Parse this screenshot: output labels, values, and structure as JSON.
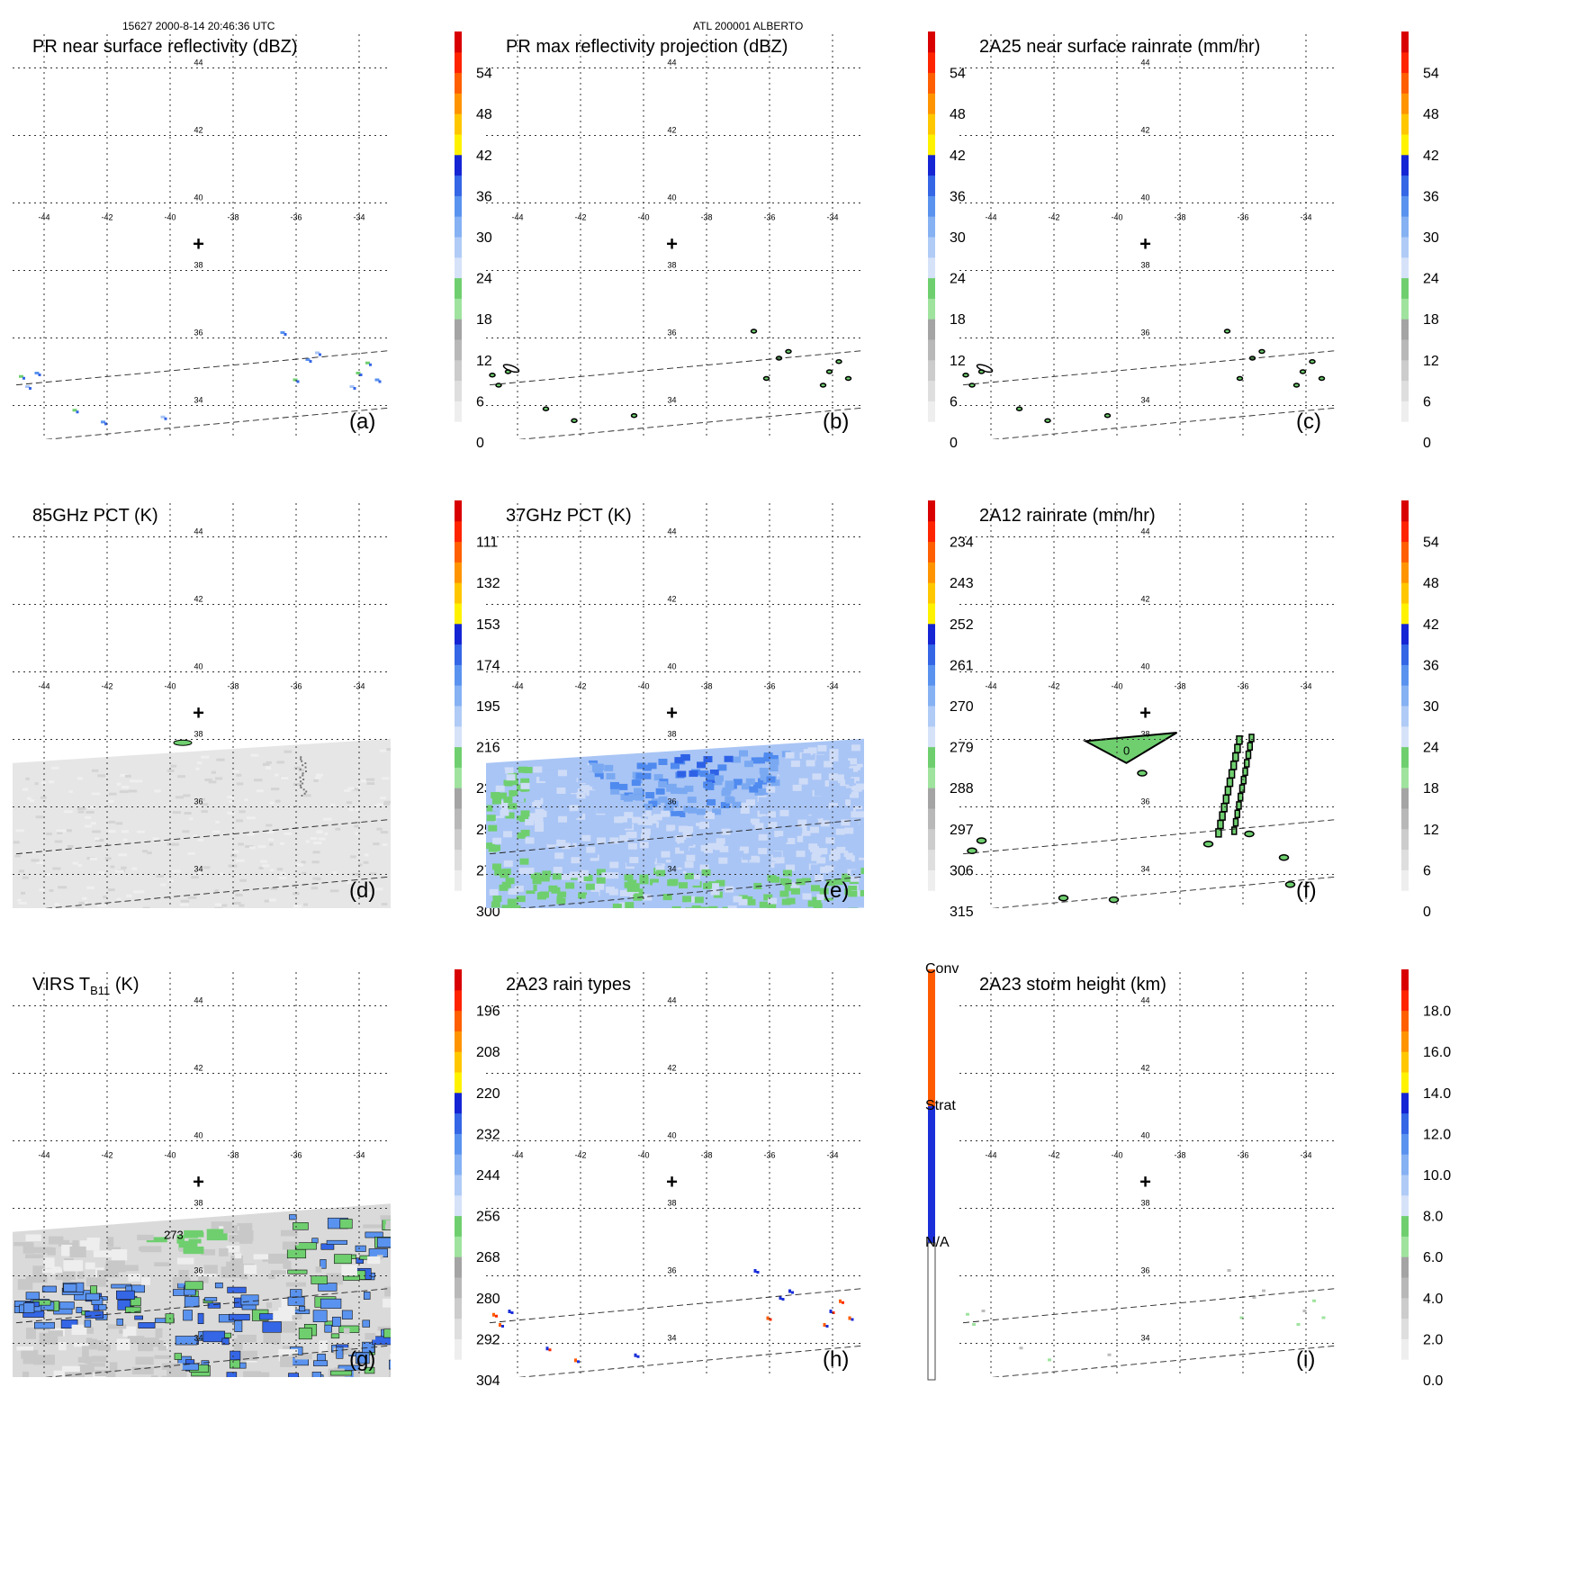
{
  "header": {
    "orbit_time": "15627 2000-8-14 20:46:36 UTC",
    "storm": "ATL 200001 ALBERTO"
  },
  "center_marker": {
    "lon": -39.1,
    "lat": 38.8,
    "symbol": "+"
  },
  "chart_data": [
    {
      "type": "heatmap",
      "panel_label": "(a)",
      "title": "PR near surface reflectivity (dBZ)",
      "colorbar": {
        "ticks": [
          "0",
          "6",
          "12",
          "18",
          "24",
          "30",
          "36",
          "42",
          "48",
          "54"
        ],
        "vmin": 0,
        "vmax": 60,
        "levels": 20
      },
      "xlim": [
        -45,
        -33
      ],
      "ylim": [
        33,
        45
      ],
      "x_ticks": [
        "-44",
        "-42",
        "-40",
        "-38",
        "-36",
        "-34"
      ],
      "y_ticks": [
        "34",
        "36",
        "38",
        "40",
        "42",
        "44"
      ],
      "swath": "pr",
      "field": "pr_sparse"
    },
    {
      "type": "heatmap",
      "panel_label": "(b)",
      "title": "PR max reflectivity projection (dBZ)",
      "colorbar": {
        "ticks": [
          "0",
          "6",
          "12",
          "18",
          "24",
          "30",
          "36",
          "42",
          "48",
          "54"
        ],
        "vmin": 0,
        "vmax": 60,
        "levels": 20
      },
      "xlim": [
        -45,
        -33
      ],
      "ylim": [
        33,
        45
      ],
      "x_ticks": [
        "-44",
        "-42",
        "-40",
        "-38",
        "-36",
        "-34"
      ],
      "y_ticks": [
        "34",
        "36",
        "38",
        "40",
        "42",
        "44"
      ],
      "swath": "pr",
      "field": "pr_contours"
    },
    {
      "type": "heatmap",
      "panel_label": "(c)",
      "title": "2A25 near surface rainrate (mm/hr)",
      "colorbar": {
        "ticks": [
          "0",
          "6",
          "12",
          "18",
          "24",
          "30",
          "36",
          "42",
          "48",
          "54"
        ],
        "vmin": 0,
        "vmax": 60,
        "levels": 20
      },
      "xlim": [
        -45,
        -33
      ],
      "ylim": [
        33,
        45
      ],
      "x_ticks": [
        "-44",
        "-42",
        "-40",
        "-38",
        "-36",
        "-34"
      ],
      "y_ticks": [
        "34",
        "36",
        "38",
        "40",
        "42",
        "44"
      ],
      "swath": "pr",
      "field": "pr_contours"
    },
    {
      "type": "heatmap",
      "panel_label": "(d)",
      "title": "85GHz PCT (K)",
      "colorbar": {
        "ticks": [
          "300",
          "279",
          "258",
          "237",
          "216",
          "195",
          "174",
          "153",
          "132",
          "111"
        ],
        "vmin": 300,
        "vmax": 90,
        "levels": 20
      },
      "xlim": [
        -45,
        -33
      ],
      "ylim": [
        33,
        45
      ],
      "x_ticks": [
        "-44",
        "-42",
        "-40",
        "-38",
        "-36",
        "-34"
      ],
      "y_ticks": [
        "34",
        "36",
        "38",
        "40",
        "42",
        "44"
      ],
      "swath": "tmi",
      "field": "pct85"
    },
    {
      "type": "heatmap",
      "panel_label": "(e)",
      "title": "37GHz PCT (K)",
      "colorbar": {
        "ticks": [
          "315",
          "306",
          "297",
          "288",
          "279",
          "270",
          "261",
          "252",
          "243",
          "234"
        ],
        "vmin": 315,
        "vmax": 225,
        "levels": 20
      },
      "xlim": [
        -45,
        -33
      ],
      "ylim": [
        33,
        45
      ],
      "x_ticks": [
        "-44",
        "-42",
        "-40",
        "-38",
        "-36",
        "-34"
      ],
      "y_ticks": [
        "34",
        "36",
        "38",
        "40",
        "42",
        "44"
      ],
      "swath": "tmi",
      "field": "pct37"
    },
    {
      "type": "heatmap",
      "panel_label": "(f)",
      "title": "2A12 rainrate (mm/hr)",
      "colorbar": {
        "ticks": [
          "0",
          "6",
          "12",
          "18",
          "24",
          "30",
          "36",
          "42",
          "48",
          "54"
        ],
        "vmin": 0,
        "vmax": 60,
        "levels": 20
      },
      "xlim": [
        -45,
        -33
      ],
      "ylim": [
        33,
        45
      ],
      "x_ticks": [
        "-44",
        "-42",
        "-40",
        "-38",
        "-36",
        "-34"
      ],
      "y_ticks": [
        "34",
        "36",
        "38",
        "40",
        "42",
        "44"
      ],
      "swath": "pr",
      "field": "tmi_rain",
      "contour_label": "0"
    },
    {
      "type": "heatmap",
      "panel_label": "(g)",
      "title": "VIRS T",
      "title_sub": "B11",
      "title_unit": " (K)",
      "colorbar": {
        "ticks": [
          "304",
          "292",
          "280",
          "268",
          "256",
          "244",
          "232",
          "220",
          "208",
          "196"
        ],
        "vmin": 304,
        "vmax": 184,
        "levels": 20
      },
      "xlim": [
        -45,
        -33
      ],
      "ylim": [
        33,
        45
      ],
      "x_ticks": [
        "-44",
        "-42",
        "-40",
        "-38",
        "-36",
        "-34"
      ],
      "y_ticks": [
        "34",
        "36",
        "38",
        "40",
        "42",
        "44"
      ],
      "swath": "virs",
      "field": "virs",
      "contour_label": "273"
    },
    {
      "type": "heatmap",
      "panel_label": "(h)",
      "title": "2A23 rain types",
      "colorbar": {
        "ticks": [
          "N/A",
          "Strat",
          "Conv"
        ],
        "categorical": true
      },
      "xlim": [
        -45,
        -33
      ],
      "ylim": [
        33,
        45
      ],
      "x_ticks": [
        "-44",
        "-42",
        "-40",
        "-38",
        "-36",
        "-34"
      ],
      "y_ticks": [
        "34",
        "36",
        "38",
        "40",
        "42",
        "44"
      ],
      "swath": "pr",
      "field": "raintype"
    },
    {
      "type": "heatmap",
      "panel_label": "(i)",
      "title": "2A23 storm height (km)",
      "colorbar": {
        "ticks": [
          "0.0",
          "2.0",
          "4.0",
          "6.0",
          "8.0",
          "10.0",
          "12.0",
          "14.0",
          "16.0",
          "18.0"
        ],
        "vmin": 0,
        "vmax": 20,
        "levels": 20
      },
      "xlim": [
        -45,
        -33
      ],
      "ylim": [
        33,
        45
      ],
      "x_ticks": [
        "-44",
        "-42",
        "-40",
        "-38",
        "-36",
        "-34"
      ],
      "y_ticks": [
        "34",
        "36",
        "38",
        "40",
        "42",
        "44"
      ],
      "swath": "pr",
      "field": "height"
    }
  ]
}
